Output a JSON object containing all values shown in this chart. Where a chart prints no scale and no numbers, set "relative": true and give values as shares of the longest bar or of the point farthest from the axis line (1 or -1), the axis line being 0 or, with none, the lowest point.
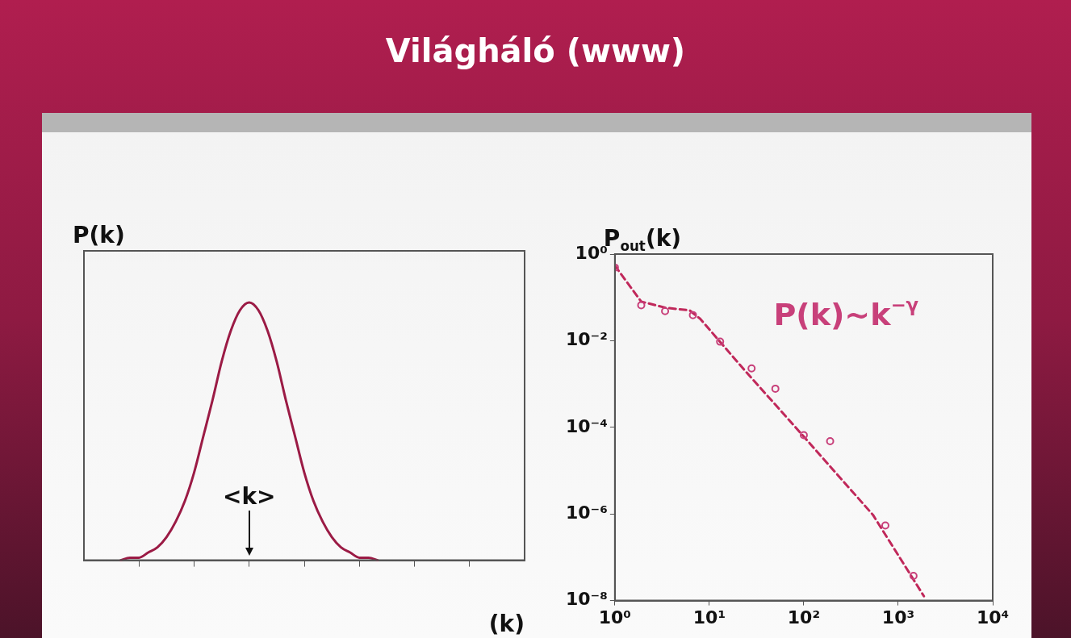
{
  "chart_data": [
    {
      "type": "line",
      "title": "Világháló (www)",
      "xlabel": "(k)",
      "ylabel": "P(k)",
      "relative": true,
      "legend": false,
      "grid": false,
      "marker": "none",
      "annotations": [
        "<k>"
      ],
      "categories": [
        null,
        null,
        null,
        null,
        null,
        null,
        null,
        null,
        null,
        null,
        null,
        null,
        null,
        null,
        null,
        null,
        null,
        null,
        null,
        null,
        null,
        null,
        null,
        null,
        null,
        null,
        null,
        null,
        null,
        null,
        null,
        null,
        null,
        null,
        null,
        null,
        null,
        null,
        null,
        null,
        null,
        null,
        null,
        null,
        null,
        null,
        null,
        null,
        null
      ],
      "series": [
        {
          "color": "#9b1b45",
          "values": [
            null,
            null,
            null,
            null,
            0,
            0.01,
            0.01,
            0.03,
            0.05,
            0.09,
            0.15,
            0.23,
            0.34,
            0.48,
            0.62,
            0.77,
            0.89,
            0.97,
            1,
            0.97,
            0.89,
            0.77,
            0.62,
            0.48,
            0.34,
            0.23,
            0.15,
            0.09,
            0.05,
            0.03,
            0.01,
            0.01,
            0,
            null,
            null,
            null,
            null,
            null,
            null,
            null,
            null,
            null,
            null,
            null,
            null,
            null,
            null,
            null,
            null
          ]
        }
      ]
    },
    {
      "type": "scatter",
      "ylabel": "P$_{out}$(k)",
      "log": "xy",
      "legend": false,
      "grid": false,
      "marker": "circle",
      "annotations": [
        "P(k)~k$^{−γ}$"
      ],
      "xlim": [
        1,
        10000
      ],
      "ylim": [
        1e-08,
        1
      ],
      "xticks": [
        {
          "value": 1,
          "label": "10⁰"
        },
        {
          "value": 10,
          "label": "10¹"
        },
        {
          "value": 100,
          "label": "10²"
        },
        {
          "value": 1000,
          "label": "10³"
        },
        {
          "value": 10000,
          "label": "10⁴"
        }
      ],
      "yticks": [
        {
          "value": 1e-08,
          "label": "10⁻⁸"
        },
        {
          "value": 1e-06,
          "label": "10⁻⁶"
        },
        {
          "value": 0.0001,
          "label": "10⁻⁴"
        },
        {
          "value": 0.01,
          "label": "10⁻²"
        },
        {
          "value": 1,
          "label": "10⁰"
        }
      ],
      "series": [
        {
          "color": "#c8407a",
          "x": [
            1,
            1.9,
            3.4,
            6.7,
            13,
            28,
            50,
            100,
            190,
            730,
            1450
          ],
          "values": [
            0.49,
            0.066,
            0.048,
            0.039,
            0.0095,
            0.0023,
            0.00078,
            6.6e-05,
            4.8e-05,
            5.4e-07,
            3.7e-08
          ]
        },
        {
          "type": "line",
          "color": "#c0285a",
          "marker": "none",
          "line_style": "dashed",
          "x": [
            1,
            1.9,
            3.4,
            6.2,
            8,
            24,
            97,
            540,
            1870
          ],
          "values": [
            0.54,
            0.08,
            0.058,
            0.05,
            0.032,
            0.002,
            6.6e-05,
            9.5e-07,
            1.26e-08
          ]
        }
      ]
    }
  ]
}
